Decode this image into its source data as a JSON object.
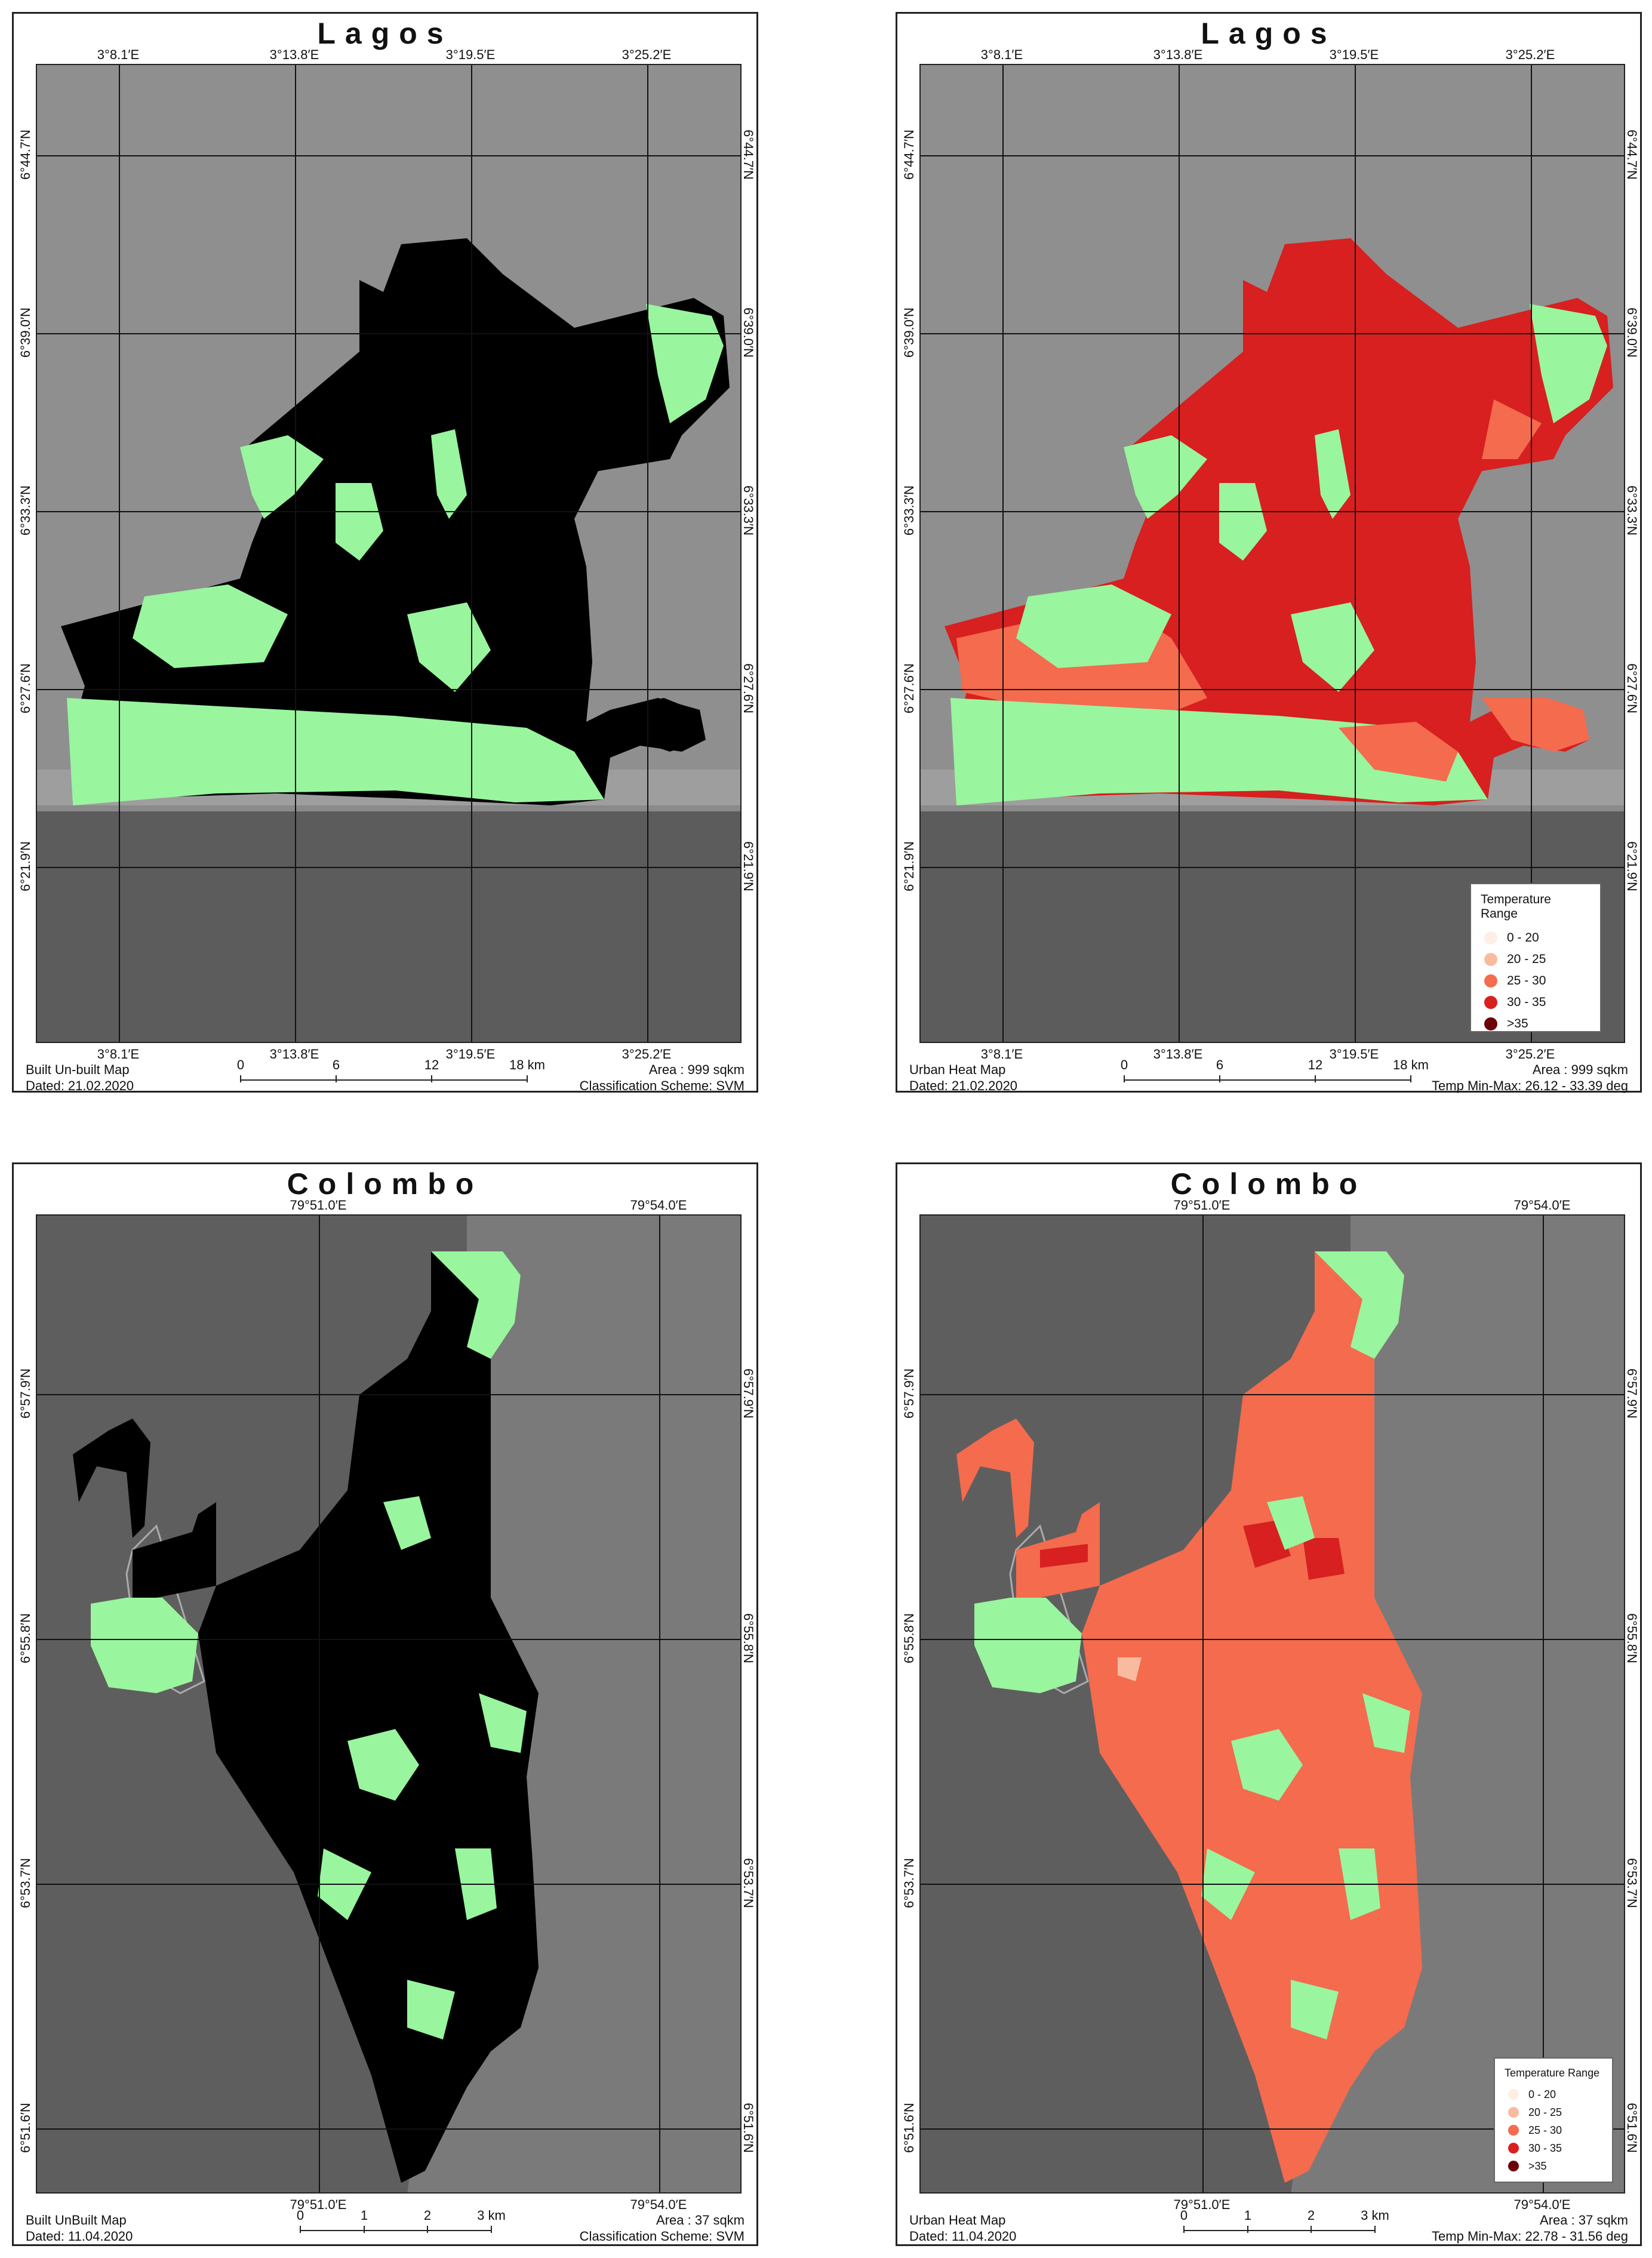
{
  "colors": {
    "land_gray": "#8a8a8a",
    "sea_gray": "#5e5e5e",
    "unbuilt": "#99f59e",
    "built_black": "#000000",
    "heat_0_20": "#fdeee6",
    "heat_20_25": "#f9bba0",
    "heat_25_30": "#f46b4e",
    "heat_30_35": "#d7201f",
    "heat_gt35": "#6b0208"
  },
  "panels": {
    "lagos_builtup": {
      "title": "Lagos",
      "top_coords": [
        "3°8.1′E",
        "3°13.8′E",
        "3°19.5′E",
        "3°25.2′E"
      ],
      "bottom_coords": [
        "3°8.1′E",
        "3°13.8′E",
        "3°19.5′E",
        "3°25.2′E"
      ],
      "side_coords": [
        "6°44.7′N",
        "6°39.0′N",
        "6°33.3′N",
        "6°27.6′N",
        "6°21.9′N"
      ],
      "footer_left": [
        "Built Un-built Map",
        "Dated: 21.02.2020"
      ],
      "footer_right": [
        "Area : 999 sqkm",
        "Classification Scheme: SVM"
      ],
      "scale": [
        "0",
        "6",
        "12",
        "18 km"
      ]
    },
    "lagos_heat": {
      "title": "Lagos",
      "top_coords": [
        "3°8.1′E",
        "3°13.8′E",
        "3°19.5′E",
        "3°25.2′E"
      ],
      "bottom_coords": [
        "3°8.1′E",
        "3°13.8′E",
        "3°19.5′E",
        "3°25.2′E"
      ],
      "side_coords": [
        "6°44.7′N",
        "6°39.0′N",
        "6°33.3′N",
        "6°27.6′N",
        "6°21.9′N"
      ],
      "footer_left": [
        "Urban Heat Map",
        "Dated: 21.02.2020"
      ],
      "footer_right": [
        "Area : 999 sqkm",
        "Temp Min-Max: 26.12 - 33.39 deg"
      ],
      "scale": [
        "0",
        "6",
        "12",
        "18 km"
      ],
      "legend": {
        "title": "Temperature Range",
        "items": [
          "0 - 20",
          "20 - 25",
          "25 - 30",
          "30 - 35",
          ">35"
        ]
      }
    },
    "colombo_builtup": {
      "title": "Colombo",
      "top_coords": [
        "79°51.0′E",
        "79°54.0′E"
      ],
      "bottom_coords": [
        "79°51.0′E",
        "79°54.0′E"
      ],
      "side_coords": [
        "6°57.9′N",
        "6°55.8′N",
        "6°53.7′N",
        "6°51.6′N"
      ],
      "footer_left": [
        "Built UnBuilt Map",
        "Dated: 11.04.2020"
      ],
      "footer_right": [
        "Area : 37 sqkm",
        "Classification Scheme: SVM"
      ],
      "scale": [
        "0",
        "1",
        "2",
        "3 km"
      ]
    },
    "colombo_heat": {
      "title": "Colombo",
      "top_coords": [
        "79°51.0′E",
        "79°54.0′E"
      ],
      "bottom_coords": [
        "79°51.0′E",
        "79°54.0′E"
      ],
      "side_coords": [
        "6°57.9′N",
        "6°55.8′N",
        "6°53.7′N",
        "6°51.6′N"
      ],
      "footer_left": [
        "Urban Heat Map",
        "Dated: 11.04.2020"
      ],
      "footer_right": [
        "Area : 37 sqkm",
        "Temp Min-Max: 22.78 - 31.56 deg"
      ],
      "scale": [
        "0",
        "1",
        "2",
        "3 km"
      ],
      "legend": {
        "title": "Temperature Range",
        "items": [
          "0 - 20",
          "20 - 25",
          "25 - 30",
          "30 - 35",
          ">35"
        ]
      }
    }
  }
}
